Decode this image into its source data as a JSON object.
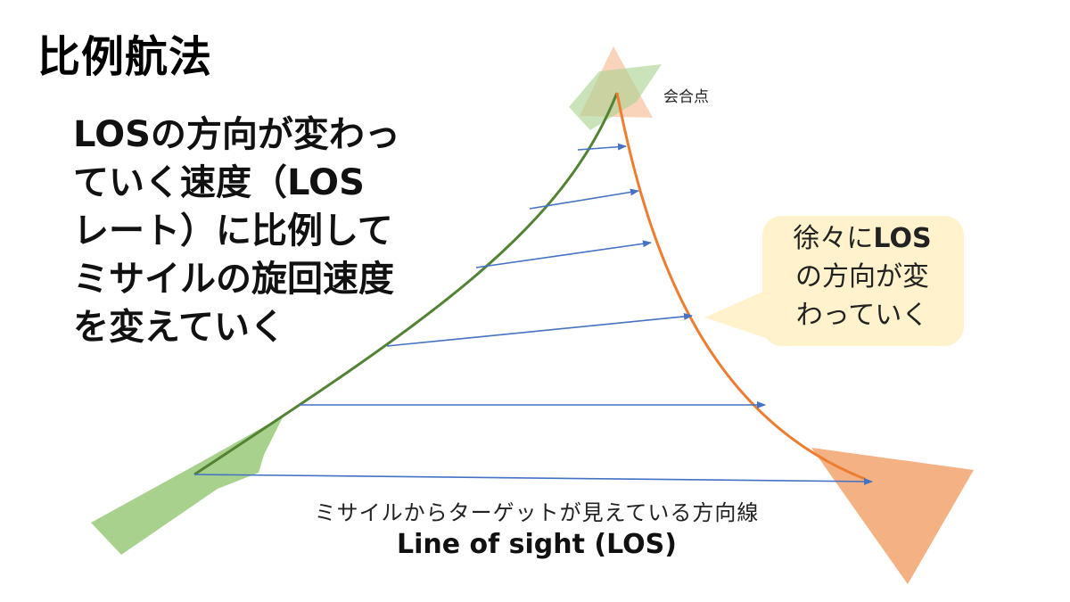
{
  "title": "比例航法",
  "explanation_lines": [
    "LOSの方向が変わっ",
    "ていく速度（LOS",
    "レート）に比例して",
    "ミサイルの旋回速度",
    "を変えていく"
  ],
  "callout": {
    "line1_prefix": "徐々に",
    "line1_bold": "LOS",
    "line2": "の方向が変",
    "line3": "わっていく"
  },
  "intercept_label": "会合点",
  "los_caption": "ミサイルからターゲットが見えている方向線",
  "los_label": "Line of sight (LOS)",
  "colors": {
    "missile_path": "#548235",
    "missile_shape": "#a9d18e",
    "target_path": "#ed7d31",
    "target_shape": "#f4b183",
    "los_arrows": "#4472c4",
    "callout_fill": "#fff2cc"
  }
}
